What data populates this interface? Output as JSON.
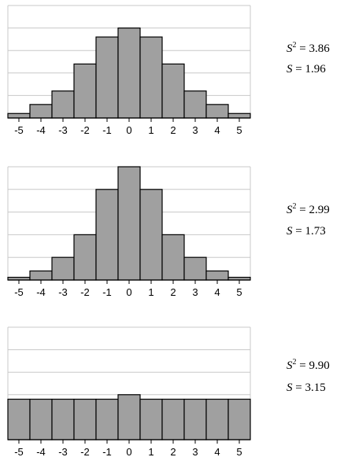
{
  "chart_data": [
    {
      "type": "bar",
      "categories": [
        "-5",
        "-4",
        "-3",
        "-2",
        "-1",
        "0",
        "1",
        "2",
        "3",
        "4",
        "5"
      ],
      "values": [
        0.2,
        0.6,
        1.2,
        2.4,
        3.6,
        4.0,
        3.6,
        2.4,
        1.2,
        0.6,
        0.2
      ],
      "ylim": [
        0,
        5
      ],
      "grid": true,
      "stats": {
        "variance_label": "= 3.86",
        "sd_label": "= 1.96"
      }
    },
    {
      "type": "bar",
      "categories": [
        "-5",
        "-4",
        "-3",
        "-2",
        "-1",
        "0",
        "1",
        "2",
        "3",
        "4",
        "5"
      ],
      "values": [
        0.12,
        0.4,
        1.0,
        2.0,
        4.0,
        5.0,
        4.0,
        2.0,
        1.0,
        0.4,
        0.12
      ],
      "ylim": [
        0,
        5
      ],
      "grid": true,
      "stats": {
        "variance_label": "= 2.99",
        "sd_label": "= 1.73"
      }
    },
    {
      "type": "bar",
      "categories": [
        "-5",
        "-4",
        "-3",
        "-2",
        "-1",
        "0",
        "1",
        "2",
        "3",
        "4",
        "5"
      ],
      "values": [
        1.8,
        1.8,
        1.8,
        1.8,
        1.8,
        2.0,
        1.8,
        1.8,
        1.8,
        1.8,
        1.8
      ],
      "ylim": [
        0,
        5
      ],
      "grid": true,
      "stats": {
        "variance_label": "= 9.90",
        "sd_label": "= 3.15"
      }
    }
  ],
  "symbols": {
    "variance": "S",
    "variance_power": "2",
    "sd": "S"
  },
  "colors": {
    "bar_fill": "#a0a0a0",
    "bar_stroke": "#000000",
    "grid": "#c8c8c8",
    "axis": "#c8c8c8"
  }
}
